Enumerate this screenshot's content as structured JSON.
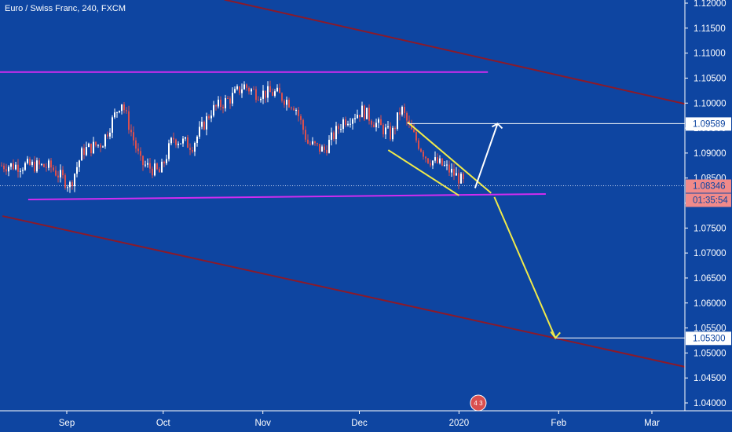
{
  "header": {
    "title": "Euro / Swiss Franc, 240, FXCM"
  },
  "colors": {
    "background": "#0e45a1",
    "candle_up": "#ffffff",
    "candle_down": "#d94f4f",
    "channel_line": "#8b1a2a",
    "support_resistance": "#d12cf0",
    "wedge": "#f0ea4a",
    "arrow_up": "#ffffff",
    "arrow_down": "#f0ea4a",
    "label_red": "#f08a8a"
  },
  "chart_data": {
    "type": "candlestick",
    "symbol": "Euro / Swiss Franc",
    "timeframe": "240",
    "source": "FXCM",
    "x_ticks": [
      "Sep",
      "Oct",
      "Nov",
      "Dec",
      "2020",
      "Feb",
      "Mar"
    ],
    "y_ticks": [
      "1.12000",
      "1.11500",
      "1.11000",
      "1.10500",
      "1.10000",
      "1.09500",
      "1.09000",
      "1.08500",
      "1.08000",
      "1.07500",
      "1.07000",
      "1.06500",
      "1.06000",
      "1.05500",
      "1.05000",
      "1.04500",
      "1.04000"
    ],
    "ylim": [
      1.0387,
      1.1207
    ],
    "approx_series": [
      {
        "date": "2019-08-22",
        "close": 1.0875
      },
      {
        "date": "2019-08-27",
        "close": 1.0872
      },
      {
        "date": "2019-09-02",
        "close": 1.0835
      },
      {
        "date": "2019-09-06",
        "close": 1.0905
      },
      {
        "date": "2019-09-12",
        "close": 1.092
      },
      {
        "date": "2019-09-18",
        "close": 1.1005
      },
      {
        "date": "2019-09-24",
        "close": 1.088
      },
      {
        "date": "2019-09-30",
        "close": 1.086
      },
      {
        "date": "2019-10-04",
        "close": 1.093
      },
      {
        "date": "2019-10-10",
        "close": 1.0915
      },
      {
        "date": "2019-10-16",
        "close": 1.0985
      },
      {
        "date": "2019-10-22",
        "close": 1.101
      },
      {
        "date": "2019-10-26",
        "close": 1.1035
      },
      {
        "date": "2019-10-30",
        "close": 1.102
      },
      {
        "date": "2019-11-05",
        "close": 1.102
      },
      {
        "date": "2019-11-11",
        "close": 1.0995
      },
      {
        "date": "2019-11-15",
        "close": 1.092
      },
      {
        "date": "2019-11-20",
        "close": 1.0905
      },
      {
        "date": "2019-11-26",
        "close": 1.0965
      },
      {
        "date": "2019-12-02",
        "close": 1.0985
      },
      {
        "date": "2019-12-06",
        "close": 1.096
      },
      {
        "date": "2019-12-11",
        "close": 1.0935
      },
      {
        "date": "2019-12-14",
        "close": 1.099
      },
      {
        "date": "2019-12-17",
        "close": 1.0945
      },
      {
        "date": "2019-12-22",
        "close": 1.089
      },
      {
        "date": "2019-12-27",
        "close": 1.0875
      },
      {
        "date": "2020-01-01",
        "close": 1.085
      },
      {
        "date": "2020-01-03",
        "close": 1.0835
      }
    ],
    "annotations": {
      "resistance_level": 1.1062,
      "support_line": {
        "from": [
          "2019-08-20",
          1.0807
        ],
        "to": [
          "2020-01-28",
          1.0818
        ]
      },
      "channel_upper": {
        "from": [
          "2019-10-20",
          1.1207
        ],
        "to": [
          "2020-03-15",
          1.0993
        ]
      },
      "channel_lower": {
        "from": [
          "2019-08-12",
          1.0774
        ],
        "to": [
          "2020-03-15",
          1.0467
        ]
      },
      "arrow_up_target": 1.09589,
      "arrow_down_target": 1.053
    }
  },
  "price_labels": {
    "current_price": "1.08346",
    "countdown": "01:35:54",
    "target_up": "1.09589",
    "target_down": "1.05300"
  },
  "event_badge": {
    "text": "4 3"
  }
}
